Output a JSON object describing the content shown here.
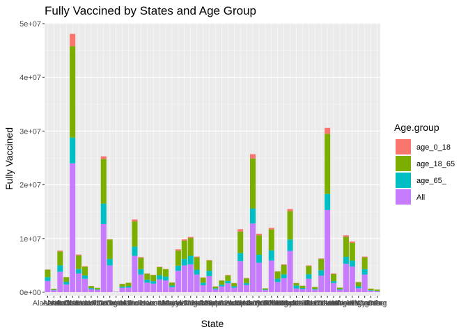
{
  "chart_data": {
    "type": "bar",
    "stacked": true,
    "title": "Fully Vaccined by States and Age Group",
    "xlabel": "State",
    "ylabel": "Fully Vaccined",
    "ylim": [
      0,
      50000000
    ],
    "y_ticks": [
      {
        "value": 0,
        "label": "0e+00"
      },
      {
        "value": 10000000,
        "label": "1e+07"
      },
      {
        "value": 20000000,
        "label": "2e+07"
      },
      {
        "value": 30000000,
        "label": "3e+07"
      },
      {
        "value": 40000000,
        "label": "4e+07"
      },
      {
        "value": 50000000,
        "label": "5e+07"
      }
    ],
    "grid": true,
    "legend": {
      "title": "Age.group",
      "position": "right"
    },
    "categories": [
      "Alabama",
      "Alaska",
      "Arizona",
      "Arkansas",
      "California",
      "Colorado",
      "Connecticut",
      "Delaware",
      "District of Columbia",
      "Florida",
      "Georgia",
      "Guam",
      "Hawaii",
      "Idaho",
      "Illinois",
      "Indiana",
      "Iowa",
      "Kansas",
      "Kentucky",
      "Louisiana",
      "Maine",
      "Maryland",
      "Massachusetts",
      "Michigan",
      "Minnesota",
      "Mississippi",
      "Missouri",
      "Montana",
      "Nebraska",
      "Nevada",
      "New Hampshire",
      "New Jersey",
      "New Mexico",
      "New York",
      "North Carolina",
      "North Dakota",
      "Ohio",
      "Oklahoma",
      "Oregon",
      "Pennsylvania",
      "Puerto Rico",
      "Rhode Island",
      "South Carolina",
      "South Dakota",
      "Tennessee",
      "Texas",
      "Utah",
      "Vermont",
      "Virginia",
      "Washington",
      "West Virginia",
      "Wisconsin",
      "Wyoming",
      "Other"
    ],
    "series": [
      {
        "name": "All",
        "color": "#C77CFF",
        "values": [
          2100000,
          360000,
          3800000,
          1450000,
          24000000,
          3500000,
          2500000,
          580000,
          450000,
          12700000,
          5000000,
          80000,
          830000,
          850000,
          6800000,
          3300000,
          1800000,
          1600000,
          2400000,
          2200000,
          950000,
          4000000,
          5000000,
          5200000,
          3300000,
          1300000,
          3000000,
          540000,
          1100000,
          1650000,
          850000,
          5800000,
          1350000,
          12800000,
          5500000,
          380000,
          5900000,
          1900000,
          2600000,
          7700000,
          700000,
          600000,
          2500000,
          480000,
          3100000,
          15300000,
          1700000,
          450000,
          5300000,
          4800000,
          750000,
          3300000,
          280000,
          200000
        ]
      },
      {
        "name": "age_65_",
        "color": "#00BFC4",
        "values": [
          700000,
          80000,
          1200000,
          500000,
          4800000,
          800000,
          650000,
          190000,
          80000,
          3800000,
          1200000,
          10000,
          220000,
          250000,
          1700000,
          1000000,
          550000,
          460000,
          780000,
          700000,
          290000,
          950000,
          1200000,
          1600000,
          900000,
          480000,
          1000000,
          190000,
          310000,
          450000,
          270000,
          1500000,
          360000,
          2800000,
          1500000,
          120000,
          1900000,
          620000,
          720000,
          2100000,
          550000,
          180000,
          850000,
          140000,
          1000000,
          3000000,
          380000,
          130000,
          1300000,
          1100000,
          350000,
          1000000,
          90000,
          50000
        ]
      },
      {
        "name": "age_18_65",
        "color": "#7CAE00",
        "values": [
          1400000,
          200000,
          2600000,
          850000,
          17000000,
          2550000,
          1600000,
          380000,
          280000,
          8300000,
          3600000,
          20000,
          480000,
          650000,
          4700000,
          2100000,
          1100000,
          1140000,
          1500000,
          1400000,
          560000,
          2800000,
          3400000,
          3300000,
          2300000,
          940000,
          1900000,
          340000,
          770000,
          1050000,
          560000,
          4000000,
          870000,
          9300000,
          3600000,
          220000,
          3900000,
          1330000,
          1780000,
          5300000,
          450000,
          420000,
          1550000,
          360000,
          2100000,
          11200000,
          1300000,
          270000,
          3700000,
          3300000,
          780000,
          2200000,
          280000,
          250000
        ]
      },
      {
        "name": "age_0_18",
        "color": "#F8766D",
        "values": [
          40000,
          10000,
          150000,
          35000,
          2300000,
          180000,
          100000,
          20000,
          20000,
          500000,
          100000,
          0,
          50000,
          20000,
          350000,
          150000,
          50000,
          60000,
          70000,
          40000,
          30000,
          250000,
          250000,
          200000,
          150000,
          40000,
          80000,
          30000,
          40000,
          70000,
          40000,
          450000,
          70000,
          800000,
          300000,
          10000,
          280000,
          70000,
          100000,
          400000,
          40000,
          30000,
          100000,
          20000,
          100000,
          1100000,
          120000,
          20000,
          300000,
          250000,
          20000,
          150000,
          20000,
          0
        ]
      }
    ]
  }
}
